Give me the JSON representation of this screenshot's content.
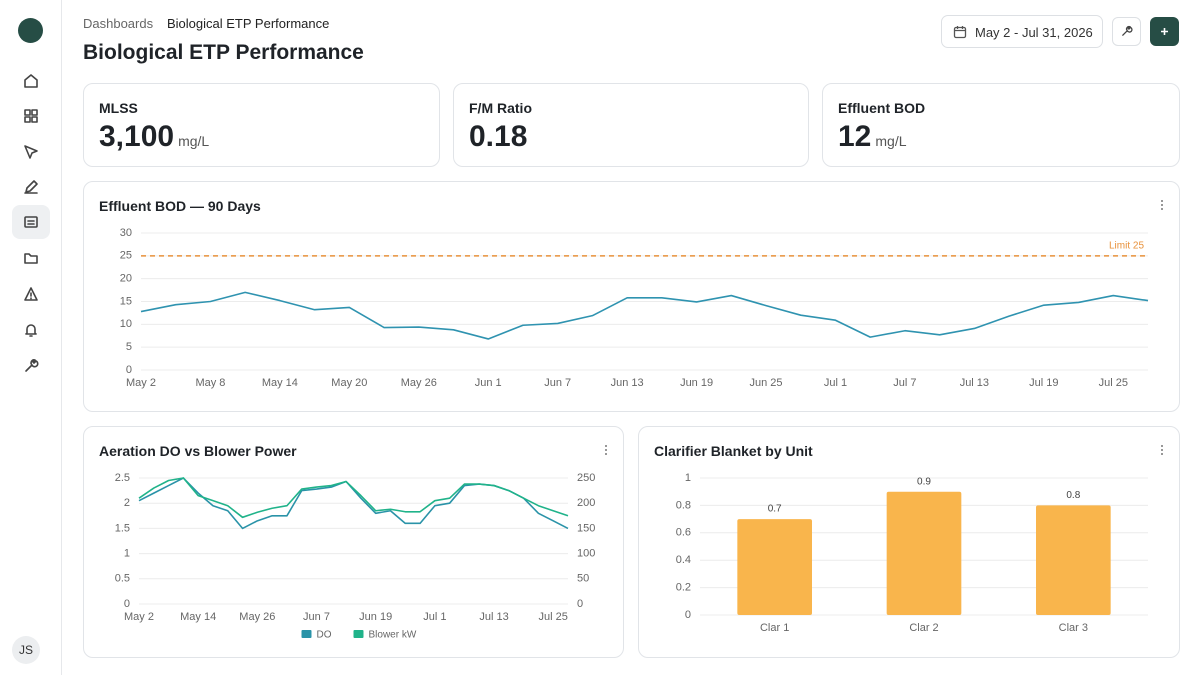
{
  "header": {
    "breadcrumb": [
      "Dashboards",
      "Biological ETP Performance"
    ],
    "title": "Biological ETP Performance",
    "date_range": "May 2 - Jul 31, 2026",
    "user": "JS"
  },
  "kpis": [
    {
      "label": "MLSS",
      "value": "3,100",
      "unit": "mg/L"
    },
    {
      "label": "F/M Ratio",
      "value": "0.18"
    },
    {
      "label": "Effluent BOD",
      "value": "12",
      "unit": "mg/L"
    }
  ],
  "chart_data": [
    {
      "type": "line",
      "title": "Effluent BOD — 90 Days",
      "categories": [
        "May 2",
        null,
        "May 8",
        null,
        "May 14",
        null,
        "May 20",
        null,
        "May 26",
        null,
        "Jun 1",
        null,
        "Jun 7",
        null,
        "Jun 13",
        null,
        "Jun 19",
        null,
        "Jun 25",
        null,
        "Jul 1",
        null,
        "Jul 7",
        null,
        "Jul 13",
        null,
        "Jul 19",
        null,
        "Jul 25",
        null
      ],
      "series": [
        {
          "name": "Effluent BOD",
          "color": "#2f93b0",
          "values": [
            12.8,
            14.3,
            15,
            17,
            15.2,
            13.2,
            13.7,
            9.3,
            9.4,
            8.8,
            6.8,
            9.8,
            10.2,
            11.9,
            15.8,
            15.8,
            14.9,
            16.3,
            14.1,
            12,
            10.9,
            7.2,
            8.6,
            7.7,
            9.1,
            11.8,
            14.2,
            14.8,
            16.3,
            15.2
          ]
        }
      ],
      "ylim": [
        0,
        30
      ],
      "yticks": [
        0,
        5,
        10,
        15,
        20,
        25,
        30
      ],
      "grid": true,
      "threshold": {
        "value": 25,
        "label": "Limit 25",
        "color": "#e8913a"
      }
    },
    {
      "type": "line",
      "title": "Aeration DO vs Blower Power",
      "categories": [
        "May 2",
        null,
        null,
        null,
        "May 14",
        null,
        null,
        null,
        "May 26",
        null,
        null,
        null,
        "Jun 7",
        null,
        null,
        null,
        "Jun 19",
        null,
        null,
        null,
        "Jul 1",
        null,
        null,
        null,
        "Jul 13",
        null,
        null,
        null,
        "Jul 25",
        null
      ],
      "series": [
        {
          "name": "DO",
          "color": "#2a93a8",
          "values": [
            2.05,
            2.2,
            2.35,
            2.5,
            2.2,
            1.95,
            1.85,
            1.5,
            1.65,
            1.75,
            1.75,
            2.25,
            2.28,
            2.32,
            2.43,
            2.1,
            1.8,
            1.85,
            1.6,
            1.6,
            1.95,
            2.0,
            2.35,
            2.38,
            2.35,
            2.25,
            2.1,
            1.8,
            1.65,
            1.5
          ]
        },
        {
          "name": "Blower kW",
          "color": "#20b38a",
          "axis": "y2",
          "values": [
            210,
            230,
            245,
            250,
            215,
            205,
            195,
            172,
            182,
            190,
            195,
            228,
            232,
            235,
            243,
            215,
            185,
            188,
            183,
            183,
            205,
            210,
            238,
            238,
            235,
            225,
            210,
            195,
            185,
            175
          ]
        }
      ],
      "ylim": [
        0,
        2.5
      ],
      "yticks": [
        0,
        0.5,
        1,
        1.5,
        2,
        2.5
      ],
      "y2lim": [
        0,
        250
      ],
      "y2ticks": [
        0,
        50,
        100,
        150,
        200,
        250
      ],
      "grid": true,
      "legend": "bottom"
    },
    {
      "type": "bar",
      "title": "Clarifier Blanket by Unit",
      "categories": [
        "Clar 1",
        "Clar 2",
        "Clar 3"
      ],
      "values": [
        0.7,
        0.9,
        0.8
      ],
      "color": "#f9b54c",
      "ylim": [
        0,
        1
      ],
      "yticks": [
        0,
        0.2,
        0.4,
        0.6,
        0.8,
        1
      ],
      "grid": true
    }
  ]
}
